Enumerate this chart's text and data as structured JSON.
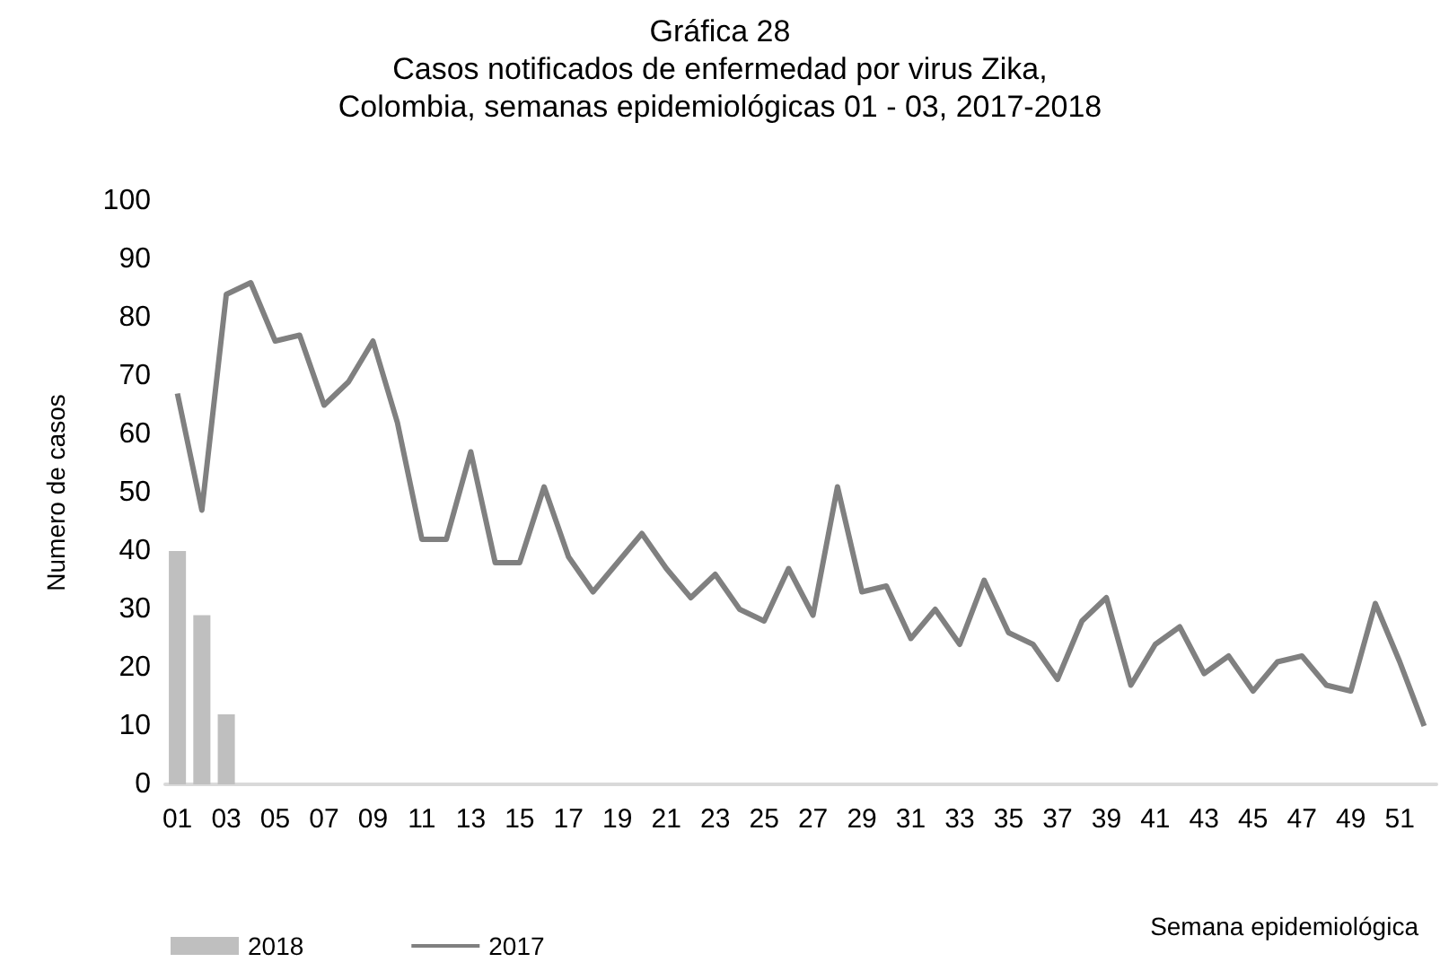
{
  "chart_data": {
    "type": "bar",
    "title": "Gráfica 28",
    "subtitle": "Casos notificados de enfermedad por virus Zika,\nColombia, semanas epidemiológicas 01 - 03, 2017-2018",
    "xlabel": "Semana epidemiológica",
    "ylabel": "Numero de casos",
    "categories": [
      "01",
      null,
      "03",
      null,
      "05",
      null,
      "07",
      null,
      "09",
      null,
      "11",
      null,
      "13",
      null,
      "15",
      null,
      "17",
      null,
      "19",
      null,
      "21",
      null,
      "23",
      null,
      "25",
      null,
      "27",
      null,
      "29",
      null,
      "31",
      null,
      "33",
      null,
      "35",
      null,
      "37",
      null,
      "39",
      null,
      "41",
      null,
      "43",
      null,
      "45",
      null,
      "47",
      null,
      "49",
      null,
      "51",
      null
    ],
    "series": [
      {
        "name": "2018",
        "color": "#bfbfbf",
        "values": [
          40,
          29,
          12,
          null,
          null,
          null,
          null,
          null,
          null,
          null,
          null,
          null,
          null,
          null,
          null,
          null,
          null,
          null,
          null,
          null,
          null,
          null,
          null,
          null,
          null,
          null,
          null,
          null,
          null,
          null,
          null,
          null,
          null,
          null,
          null,
          null,
          null,
          null,
          null,
          null,
          null,
          null,
          null,
          null,
          null,
          null,
          null,
          null,
          null,
          null,
          null,
          null
        ]
      },
      {
        "name": "2017",
        "type": "line",
        "color": "#808080",
        "values": [
          67,
          47,
          84,
          86,
          76,
          77,
          65,
          69,
          76,
          62,
          42,
          42,
          57,
          38,
          38,
          51,
          39,
          33,
          38,
          43,
          37,
          32,
          36,
          30,
          28,
          37,
          29,
          51,
          33,
          34,
          25,
          30,
          24,
          35,
          26,
          24,
          18,
          28,
          32,
          17,
          24,
          27,
          19,
          22,
          16,
          21,
          22,
          17,
          16,
          31,
          21,
          10
        ]
      }
    ],
    "ylim": [
      0,
      100
    ],
    "yticks": [
      0,
      10,
      20,
      30,
      40,
      50,
      60,
      70,
      80,
      90,
      100
    ],
    "grid": false,
    "legend": "bottom left",
    "marker": "none"
  }
}
